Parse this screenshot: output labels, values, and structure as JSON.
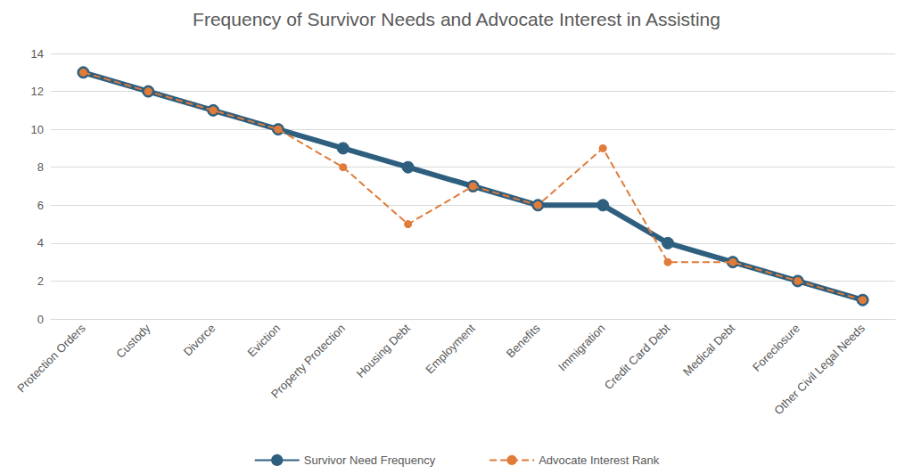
{
  "chart_data": {
    "type": "line",
    "title": "Frequency of Survivor Needs and Advocate Interest in Assisting",
    "categories": [
      "Protection Orders",
      "Custody",
      "Divorce",
      "Eviction",
      "Property Protection",
      "Housing Debt",
      "Employment",
      "Benefits",
      "Immigration",
      "Credit Card Debt",
      "Medical Debt",
      "Foreclosure",
      "Other Civil Legal Needs"
    ],
    "series": [
      {
        "name": "Survivor Need Frequency",
        "color": "#2e5f7f",
        "marker": "circle",
        "line_style": "solid",
        "values": [
          13,
          12,
          11,
          10,
          9,
          8,
          7,
          6,
          6,
          4,
          3,
          2,
          1
        ]
      },
      {
        "name": "Advocate Interest Rank",
        "color": "#e07b39",
        "marker": "circle",
        "line_style": "dashed",
        "values": [
          13,
          12,
          11,
          10,
          8,
          5,
          7,
          6,
          9,
          3,
          3,
          2,
          1
        ]
      }
    ],
    "ylim": [
      0,
      14
    ],
    "yticks": [
      0,
      2,
      4,
      6,
      8,
      10,
      12,
      14
    ],
    "grid": true,
    "legend": "bottom"
  }
}
